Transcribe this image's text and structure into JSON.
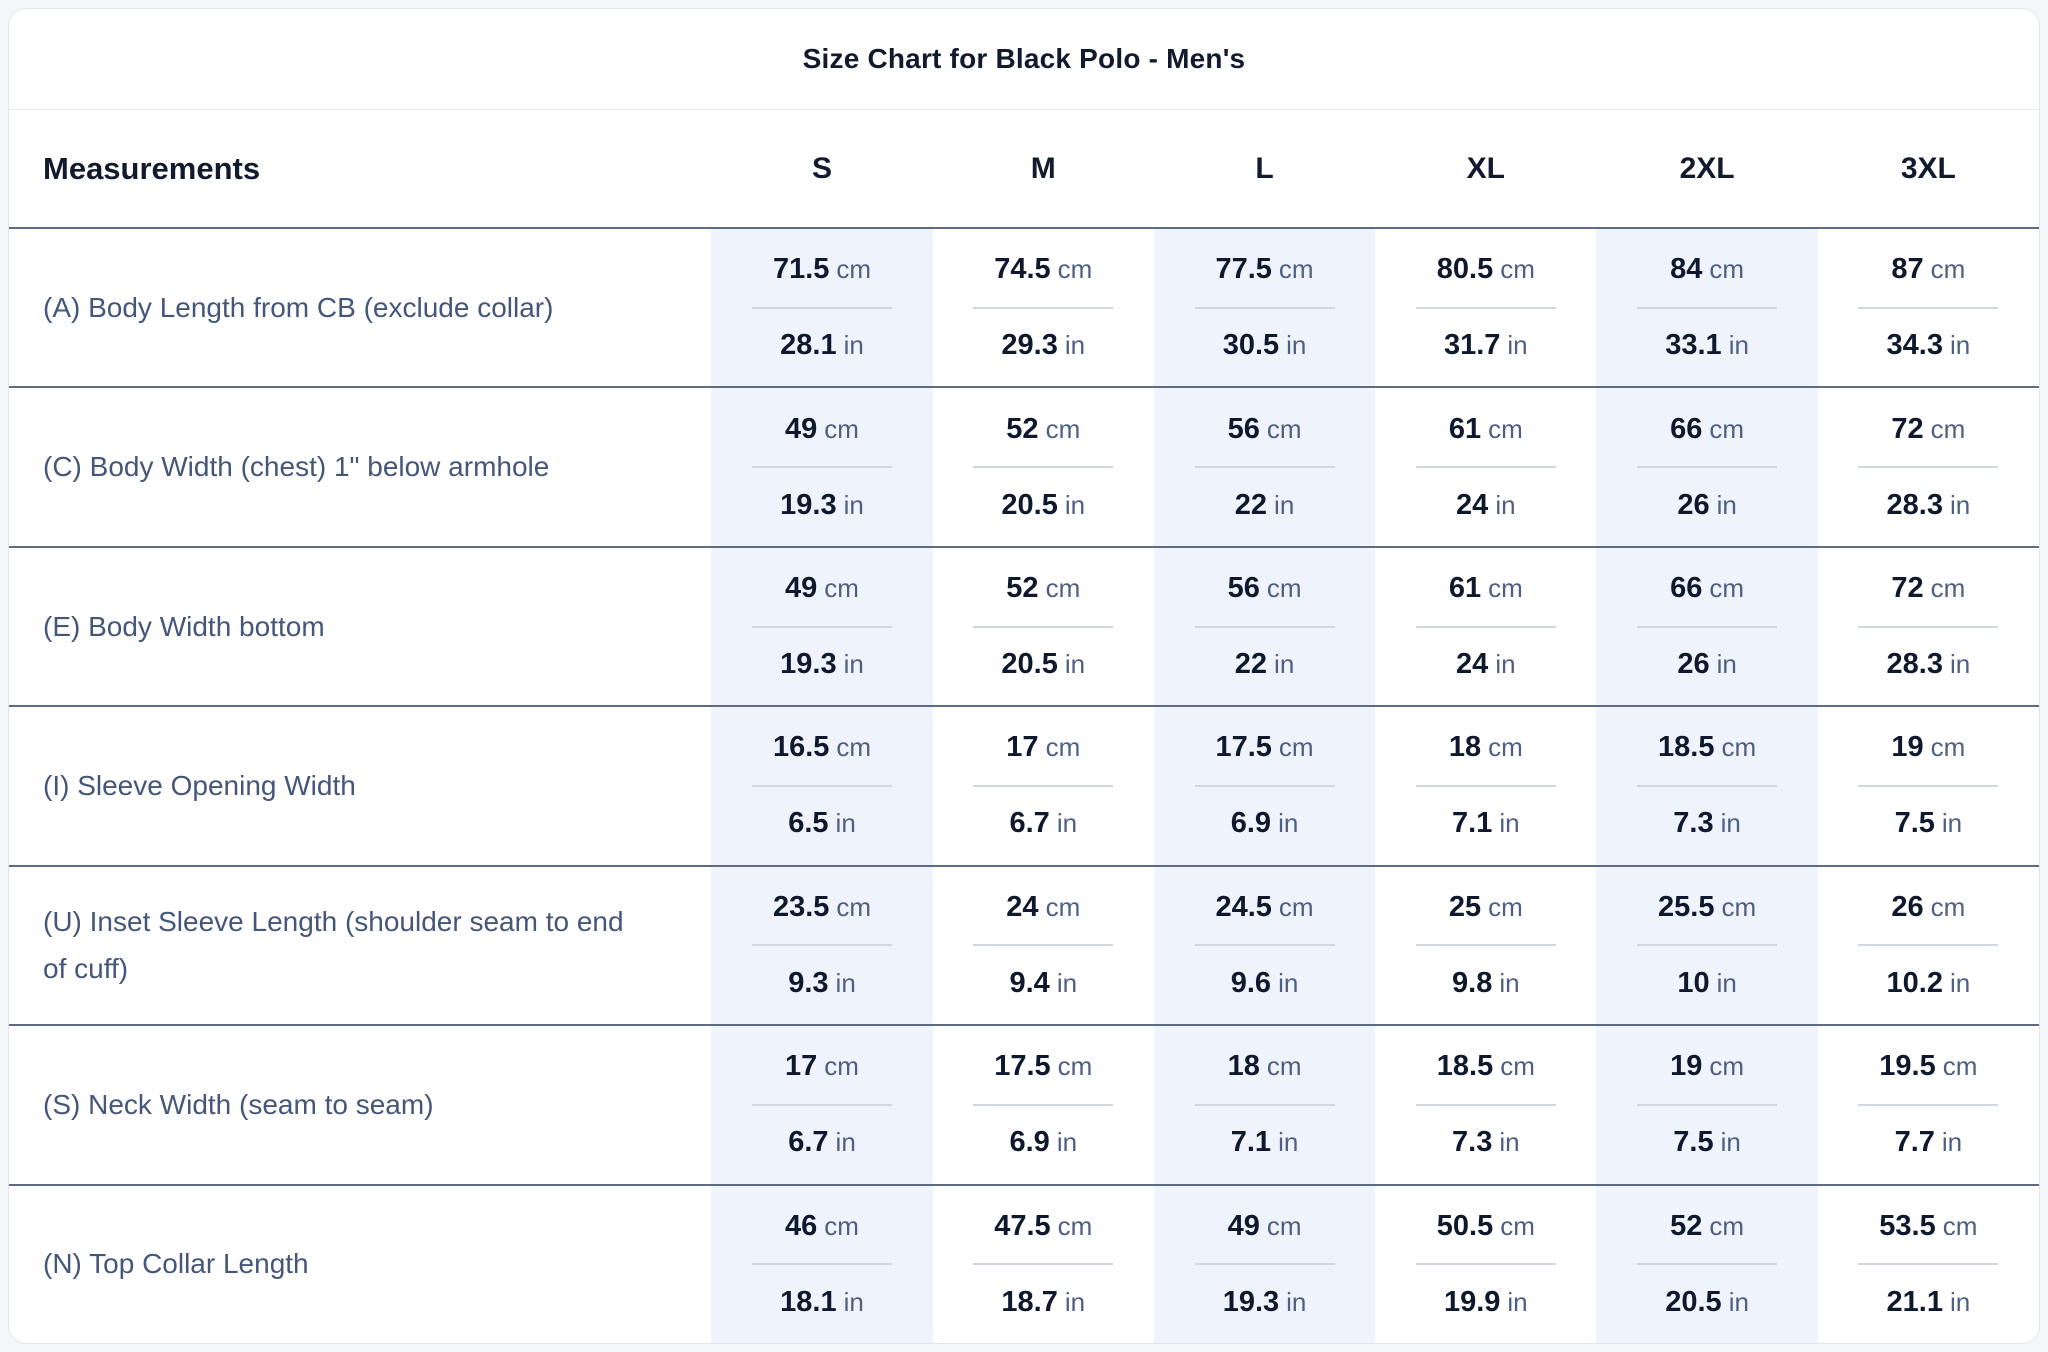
{
  "title": "Size Chart for Black Polo - Men's",
  "table": {
    "measurements_header": "Measurements",
    "size_headers": [
      "S",
      "M",
      "L",
      "XL",
      "2XL",
      "3XL"
    ],
    "unit_cm": "cm",
    "unit_in": "in",
    "shaded_columns": [
      0,
      2,
      4
    ],
    "rows": [
      {
        "label": "(A) Body Length from CB (exclude collar)",
        "cm": [
          "71.5",
          "74.5",
          "77.5",
          "80.5",
          "84",
          "87"
        ],
        "in": [
          "28.1",
          "29.3",
          "30.5",
          "31.7",
          "33.1",
          "34.3"
        ]
      },
      {
        "label": "(C) Body Width (chest) 1\" below armhole",
        "cm": [
          "49",
          "52",
          "56",
          "61",
          "66",
          "72"
        ],
        "in": [
          "19.3",
          "20.5",
          "22",
          "24",
          "26",
          "28.3"
        ]
      },
      {
        "label": "(E) Body Width bottom",
        "cm": [
          "49",
          "52",
          "56",
          "61",
          "66",
          "72"
        ],
        "in": [
          "19.3",
          "20.5",
          "22",
          "24",
          "26",
          "28.3"
        ]
      },
      {
        "label": "(I) Sleeve Opening Width",
        "cm": [
          "16.5",
          "17",
          "17.5",
          "18",
          "18.5",
          "19"
        ],
        "in": [
          "6.5",
          "6.7",
          "6.9",
          "7.1",
          "7.3",
          "7.5"
        ]
      },
      {
        "label": "(U) Inset Sleeve Length (shoulder seam to end of cuff)",
        "cm": [
          "23.5",
          "24",
          "24.5",
          "25",
          "25.5",
          "26"
        ],
        "in": [
          "9.3",
          "9.4",
          "9.6",
          "9.8",
          "10",
          "10.2"
        ]
      },
      {
        "label": "(S) Neck Width (seam to seam)",
        "cm": [
          "17",
          "17.5",
          "18",
          "18.5",
          "19",
          "19.5"
        ],
        "in": [
          "6.7",
          "6.9",
          "7.1",
          "7.3",
          "7.5",
          "7.7"
        ]
      },
      {
        "label": "(N) Top Collar Length",
        "cm": [
          "46",
          "47.5",
          "49",
          "50.5",
          "52",
          "53.5"
        ],
        "in": [
          "18.1",
          "18.7",
          "19.3",
          "19.9",
          "20.5",
          "21.1"
        ]
      }
    ]
  },
  "colors": {
    "page_bg": "#f5f6f8",
    "card_bg": "#ffffff",
    "card_border": "#e3e6eb",
    "title_text": "#121a2e",
    "header_text": "#121a2e",
    "label_text": "#44567a",
    "value_text": "#0f192e",
    "unit_text": "#4e5f83",
    "shaded_col_bg": "#eff3fb",
    "row_divider": "#5e6b85",
    "cell_divider": "#d2d7df",
    "title_divider": "#e7eaef"
  }
}
